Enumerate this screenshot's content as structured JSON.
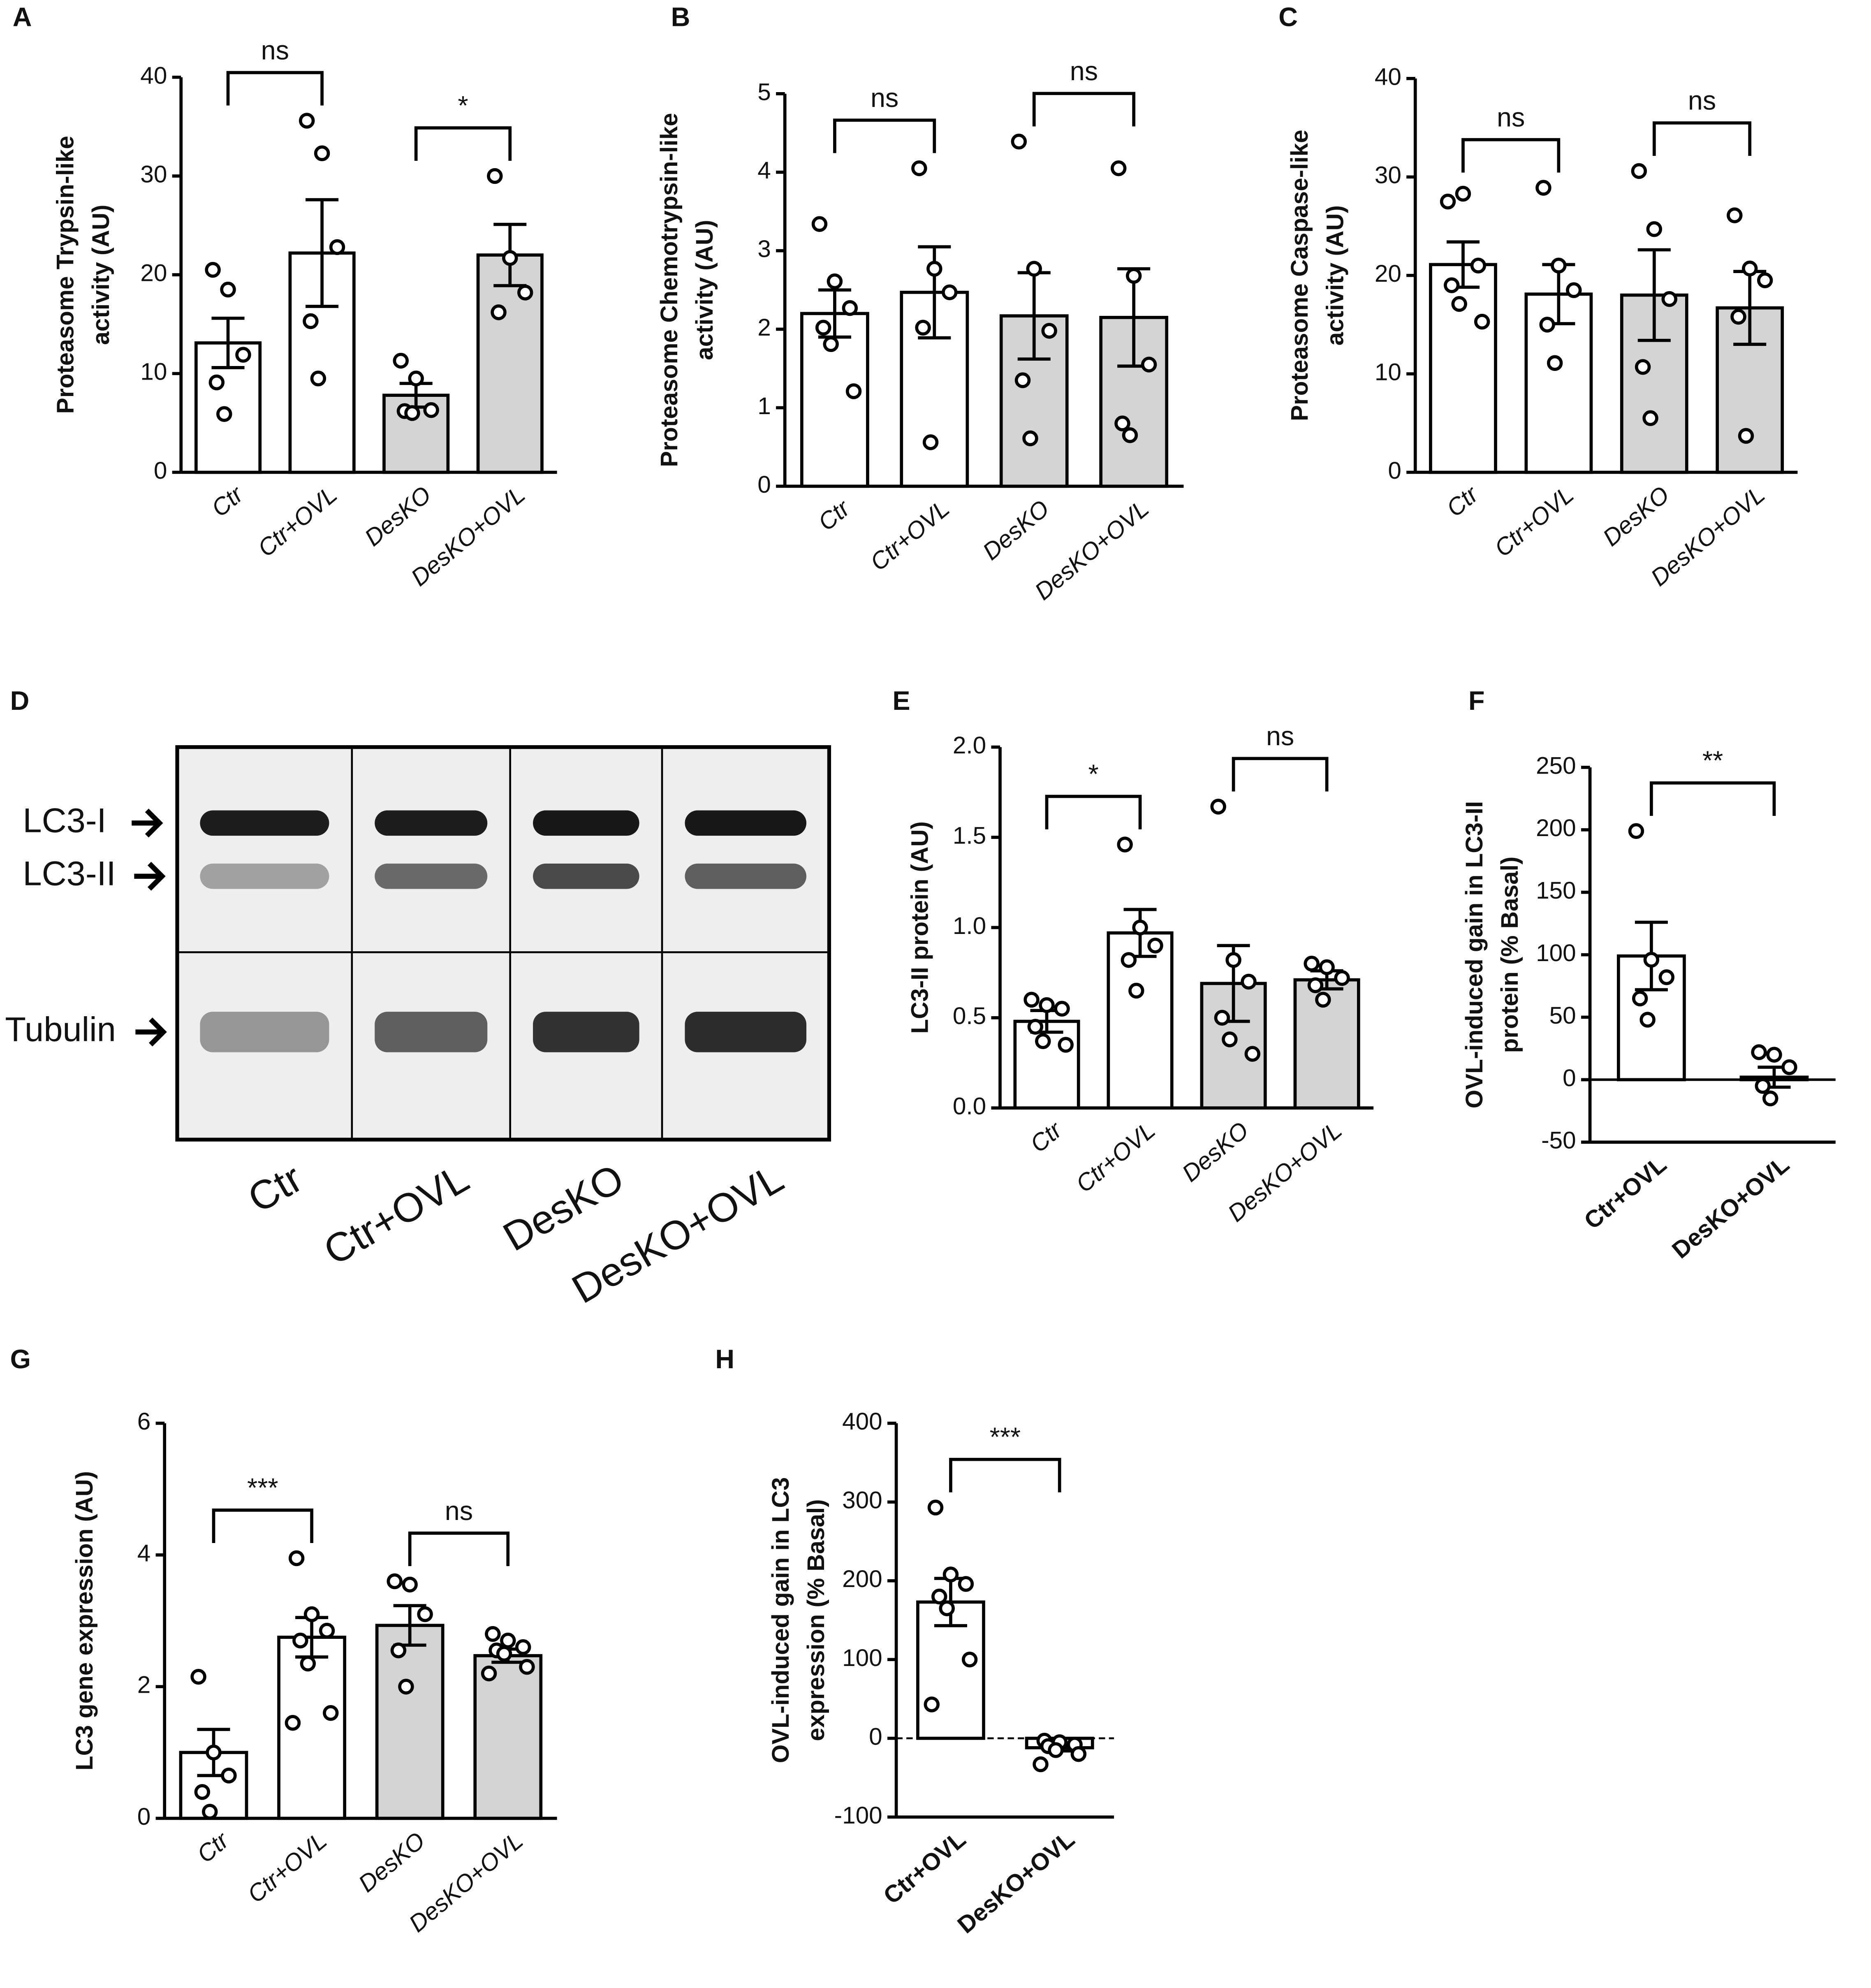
{
  "chart_data": [
    {
      "panel": "A",
      "type": "bar",
      "ylabel": [
        "Proteasome Trypsin-like",
        "activity (AU)"
      ],
      "categories": [
        "Ctr",
        "Ctr+OVL",
        "DesKO",
        "DesKO+OVL"
      ],
      "label_style": "italic",
      "values": [
        13.1,
        22.2,
        7.8,
        22.0
      ],
      "errors": [
        2.5,
        5.4,
        1.2,
        3.1
      ],
      "points": [
        [
          20.5,
          18.5,
          11.9,
          9.1,
          5.9
        ],
        [
          35.6,
          32.3,
          22.8,
          15.3,
          9.5
        ],
        [
          11.3,
          9.5,
          6.3,
          6.2,
          6.0
        ],
        [
          30.0,
          21.7,
          18.2,
          16.2
        ]
      ],
      "bar_colors": [
        "#ffffff",
        "#ffffff",
        "#d4d4d4",
        "#d4d4d4"
      ],
      "ylim": [
        0,
        40
      ],
      "yticks": [
        0,
        10,
        20,
        30,
        40
      ],
      "comparisons": [
        {
          "groups": [
            0,
            1
          ],
          "label": "ns"
        },
        {
          "groups": [
            2,
            3
          ],
          "label": "*"
        }
      ]
    },
    {
      "panel": "B",
      "type": "bar",
      "ylabel": [
        "Proteasome Chemotrypsin-like",
        "activity (AU)"
      ],
      "categories": [
        "Ctr",
        "Ctr+OVL",
        "DesKO",
        "DesKO+OVL"
      ],
      "label_style": "italic",
      "values": [
        2.2,
        2.47,
        2.17,
        2.15
      ],
      "errors": [
        0.3,
        0.58,
        0.55,
        0.62
      ],
      "points": [
        [
          3.34,
          2.61,
          2.27,
          2.02,
          1.81,
          1.21
        ],
        [
          4.05,
          2.77,
          2.47,
          2.02,
          0.56
        ],
        [
          4.39,
          2.77,
          1.98,
          1.35,
          0.61
        ],
        [
          4.05,
          2.68,
          1.55,
          0.8,
          0.65
        ]
      ],
      "bar_colors": [
        "#ffffff",
        "#ffffff",
        "#d4d4d4",
        "#d4d4d4"
      ],
      "ylim": [
        0,
        5
      ],
      "yticks": [
        0,
        1,
        2,
        3,
        4,
        5
      ],
      "comparisons": [
        {
          "groups": [
            0,
            1
          ],
          "label": "ns"
        },
        {
          "groups": [
            2,
            3
          ],
          "label": "ns"
        }
      ]
    },
    {
      "panel": "C",
      "type": "bar",
      "ylabel": [
        "Proteasome Caspase-like",
        "activity (AU)"
      ],
      "categories": [
        "Ctr",
        "Ctr+OVL",
        "DesKO",
        "DesKO+OVL"
      ],
      "label_style": "italic",
      "values": [
        21.1,
        18.1,
        18.0,
        16.7
      ],
      "errors": [
        2.3,
        3.0,
        4.6,
        3.7
      ],
      "points": [
        [
          27.5,
          28.3,
          21.0,
          19.0,
          17.1,
          15.3
        ],
        [
          28.9,
          21.0,
          18.5,
          15.0,
          11.1
        ],
        [
          30.6,
          24.7,
          17.6,
          10.7,
          5.5
        ],
        [
          26.1,
          20.7,
          19.5,
          15.8,
          3.7
        ]
      ],
      "bar_colors": [
        "#ffffff",
        "#ffffff",
        "#d4d4d4",
        "#d4d4d4"
      ],
      "ylim": [
        0,
        40
      ],
      "yticks": [
        0,
        10,
        20,
        30,
        40
      ],
      "comparisons": [
        {
          "groups": [
            0,
            1
          ],
          "label": "ns"
        },
        {
          "groups": [
            2,
            3
          ],
          "label": "ns"
        }
      ]
    },
    {
      "panel": "D",
      "type": "blot",
      "bands": [
        "LC3-I",
        "LC3-II",
        "Tubulin"
      ],
      "categories": [
        "Ctr",
        "Ctr+OVL",
        "DesKO",
        "DesKO+OVL"
      ]
    },
    {
      "panel": "E",
      "type": "bar",
      "ylabel": [
        "LC3-II protein (AU)"
      ],
      "categories": [
        "Ctr",
        "Ctr+OVL",
        "DesKO",
        "DesKO+OVL"
      ],
      "label_style": "italic",
      "values": [
        0.48,
        0.97,
        0.69,
        0.71
      ],
      "errors": [
        0.06,
        0.13,
        0.21,
        0.05
      ],
      "points": [
        [
          0.6,
          0.57,
          0.55,
          0.45,
          0.37,
          0.35
        ],
        [
          1.46,
          1.0,
          0.9,
          0.82,
          0.65
        ],
        [
          1.67,
          0.82,
          0.7,
          0.5,
          0.38,
          0.3
        ],
        [
          0.8,
          0.78,
          0.72,
          0.68,
          0.6
        ]
      ],
      "bar_colors": [
        "#ffffff",
        "#ffffff",
        "#d4d4d4",
        "#d4d4d4"
      ],
      "ylim": [
        0,
        2
      ],
      "yticks": [
        {
          "value": 0,
          "label": "0.0"
        },
        0.5,
        {
          "value": 1,
          "label": "1.0"
        },
        1.5,
        {
          "value": 2,
          "label": "2.0"
        }
      ],
      "comparisons": [
        {
          "groups": [
            0,
            1
          ],
          "label": "*"
        },
        {
          "groups": [
            2,
            3
          ],
          "label": "ns"
        }
      ]
    },
    {
      "panel": "F",
      "type": "bar",
      "ylabel": [
        "OVL-induced gain in LC3-II",
        "protein (% Basal)"
      ],
      "categories": [
        "Ctr+OVL",
        "DesKO+OVL"
      ],
      "label_style": "bold",
      "values": [
        99,
        2
      ],
      "errors": [
        27,
        8
      ],
      "points": [
        [
          199,
          96,
          82,
          65,
          48
        ],
        [
          22,
          20,
          10,
          -5,
          -15
        ]
      ],
      "bar_colors": [
        "#ffffff",
        "#ffffff"
      ],
      "zero_line": "solid",
      "ylim": [
        -50,
        250
      ],
      "yticks": [
        -50,
        0,
        50,
        100,
        150,
        200,
        250
      ],
      "comparisons": [
        {
          "groups": [
            0,
            1
          ],
          "label": "**"
        }
      ]
    },
    {
      "panel": "G",
      "type": "bar",
      "ylabel": [
        "LC3 gene expression (AU)"
      ],
      "categories": [
        "Ctr",
        "Ctr+OVL",
        "DesKO",
        "DesKO+OVL"
      ],
      "label_style": "italic",
      "values": [
        1.0,
        2.75,
        2.93,
        2.47
      ],
      "errors": [
        0.35,
        0.3,
        0.3,
        0.1
      ],
      "points": [
        [
          2.15,
          1.0,
          0.65,
          0.4,
          0.1
        ],
        [
          3.95,
          3.1,
          2.85,
          2.7,
          2.35,
          1.6,
          1.45
        ],
        [
          3.6,
          3.55,
          3.1,
          2.55,
          2.0
        ],
        [
          2.8,
          2.7,
          2.6,
          2.55,
          2.5,
          2.3,
          2.2
        ]
      ],
      "bar_colors": [
        "#ffffff",
        "#ffffff",
        "#d4d4d4",
        "#d4d4d4"
      ],
      "ylim": [
        0,
        6
      ],
      "yticks": [
        0,
        2,
        4,
        6
      ],
      "comparisons": [
        {
          "groups": [
            0,
            1
          ],
          "label": "***"
        },
        {
          "groups": [
            2,
            3
          ],
          "label": "ns"
        }
      ]
    },
    {
      "panel": "H",
      "type": "bar",
      "ylabel": [
        "OVL-induced gain in LC3",
        "expression (% Basal)"
      ],
      "categories": [
        "Ctr+OVL",
        "DesKO+OVL"
      ],
      "label_style": "bold",
      "values": [
        173,
        -12
      ],
      "errors": [
        30,
        4
      ],
      "points": [
        [
          293,
          208,
          196,
          180,
          165,
          100,
          43
        ],
        [
          -3,
          -5,
          -8,
          -10,
          -15,
          -20,
          -33
        ]
      ],
      "bar_colors": [
        "#ffffff",
        "#ffffff"
      ],
      "zero_line": "dashed",
      "ylim": [
        -100,
        400
      ],
      "yticks": [
        -100,
        0,
        100,
        200,
        300,
        400
      ],
      "comparisons": [
        {
          "groups": [
            0,
            1
          ],
          "label": "***"
        }
      ]
    }
  ]
}
